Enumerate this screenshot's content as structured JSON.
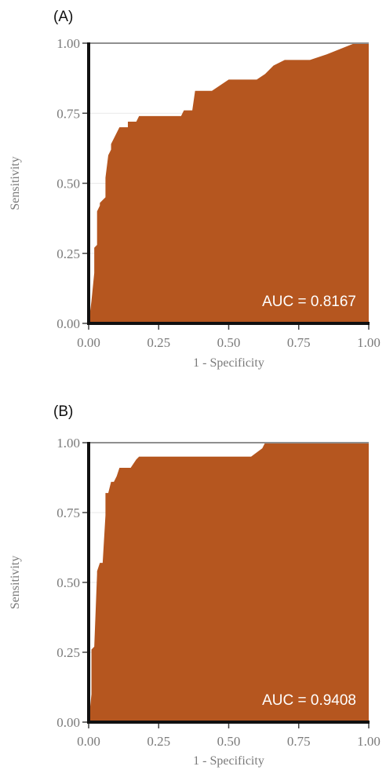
{
  "chart_data": [
    {
      "type": "area",
      "panel_label": "(A)",
      "xlabel": "1 - Specificity",
      "ylabel": "Sensitivity",
      "xlim": [
        0,
        1
      ],
      "ylim": [
        0,
        1
      ],
      "x_ticks": [
        "0.00",
        "0.25",
        "0.50",
        "0.75",
        "1.00"
      ],
      "y_ticks": [
        "0.00",
        "0.25",
        "0.50",
        "0.75",
        "1.00"
      ],
      "grid": true,
      "fill_color": "#b5561f",
      "auc_text": "AUC = 0.8167",
      "auc_position": "bottom-right",
      "x": [
        0.0,
        0.01,
        0.02,
        0.02,
        0.03,
        0.03,
        0.04,
        0.04,
        0.05,
        0.06,
        0.06,
        0.07,
        0.08,
        0.08,
        0.09,
        0.1,
        0.11,
        0.12,
        0.14,
        0.14,
        0.17,
        0.18,
        0.33,
        0.34,
        0.37,
        0.38,
        0.4,
        0.44,
        0.5,
        0.6,
        0.63,
        0.66,
        0.7,
        0.79,
        0.85,
        0.9,
        0.95,
        1.0
      ],
      "y": [
        0.0,
        0.08,
        0.18,
        0.27,
        0.28,
        0.4,
        0.42,
        0.43,
        0.44,
        0.45,
        0.52,
        0.6,
        0.62,
        0.64,
        0.66,
        0.68,
        0.7,
        0.7,
        0.7,
        0.72,
        0.72,
        0.74,
        0.74,
        0.76,
        0.76,
        0.83,
        0.83,
        0.83,
        0.87,
        0.87,
        0.89,
        0.92,
        0.94,
        0.94,
        0.96,
        0.98,
        1.0,
        1.0
      ]
    },
    {
      "type": "area",
      "panel_label": "(B)",
      "xlabel": "1 - Specificity",
      "ylabel": "Sensitivity",
      "xlim": [
        0,
        1
      ],
      "ylim": [
        0,
        1
      ],
      "x_ticks": [
        "0.00",
        "0.25",
        "0.50",
        "0.75",
        "1.00"
      ],
      "y_ticks": [
        "0.00",
        "0.25",
        "0.50",
        "0.75",
        "1.00"
      ],
      "grid": true,
      "fill_color": "#b5561f",
      "auc_text": "AUC = 0.9408",
      "auc_position": "bottom-right",
      "x": [
        0.0,
        0.01,
        0.01,
        0.02,
        0.03,
        0.03,
        0.04,
        0.05,
        0.06,
        0.06,
        0.07,
        0.08,
        0.09,
        0.1,
        0.11,
        0.12,
        0.15,
        0.17,
        0.18,
        0.58,
        0.62,
        0.63,
        1.0
      ],
      "y": [
        0.0,
        0.1,
        0.26,
        0.27,
        0.53,
        0.54,
        0.57,
        0.57,
        0.74,
        0.82,
        0.82,
        0.86,
        0.86,
        0.88,
        0.91,
        0.91,
        0.91,
        0.94,
        0.95,
        0.95,
        0.98,
        1.0,
        1.0
      ]
    }
  ]
}
